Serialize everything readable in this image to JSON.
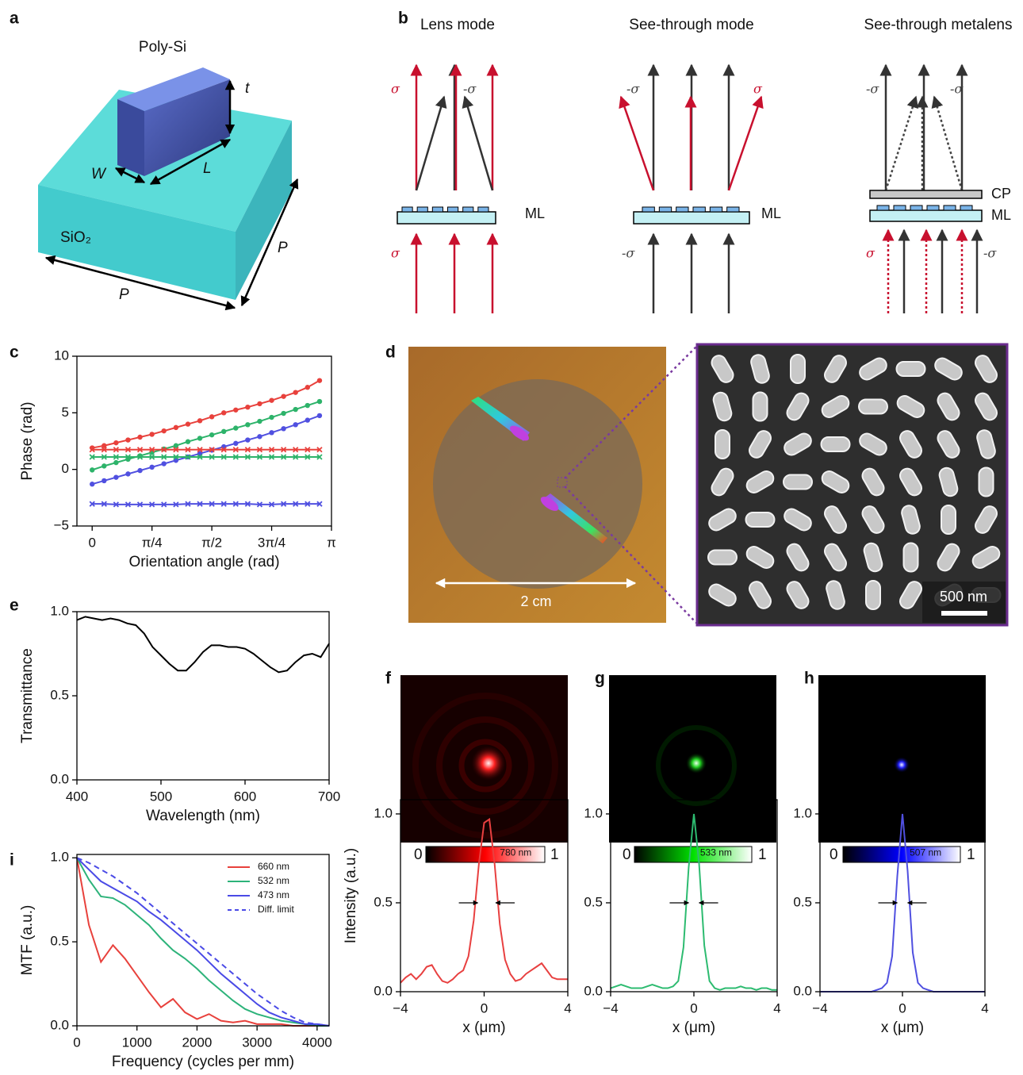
{
  "figure": {
    "panel_labels": [
      "a",
      "b",
      "c",
      "d",
      "e",
      "f",
      "g",
      "h",
      "i"
    ],
    "a": {
      "fin_material": "Poly-Si",
      "height": "t",
      "width": "W",
      "length": "L",
      "substrate": "SiO₂",
      "period_x": "P",
      "period_y": "P"
    },
    "b": {
      "diagrams": [
        {
          "title": "Lens mode",
          "labels": [
            "σ",
            "-σ",
            "ML",
            "σ"
          ]
        },
        {
          "title": "See-through mode",
          "labels": [
            "-σ",
            "σ",
            "ML",
            "-σ"
          ]
        },
        {
          "title": "See-through metalens",
          "labels": [
            "-σ",
            "-σ",
            "CP",
            "ML",
            "σ",
            "-σ"
          ]
        }
      ]
    },
    "d": {
      "photo_scale": "2 cm",
      "sem_scale": "500 nm"
    },
    "colorbars": [
      {
        "min": "0",
        "max": "1"
      },
      {
        "min": "0",
        "max": "1"
      },
      {
        "min": "0",
        "max": "1"
      }
    ]
  },
  "chart_data": [
    {
      "type": "line",
      "xlabel": "Orientation angle (rad)",
      "ylabel": "Phase (rad)",
      "x": [
        0,
        0.157,
        0.314,
        0.471,
        0.628,
        0.785,
        0.942,
        1.1,
        1.257,
        1.414,
        1.571,
        1.728,
        1.885,
        2.042,
        2.199,
        2.356,
        2.513,
        2.67,
        2.827,
        2.985
      ],
      "series": [
        {
          "color": "#e8413c",
          "marker": "o",
          "values": [
            1.9,
            2.1,
            2.35,
            2.6,
            2.85,
            3.1,
            3.4,
            3.7,
            4.0,
            4.3,
            4.65,
            5.0,
            5.25,
            5.5,
            5.8,
            6.1,
            6.45,
            6.8,
            7.25,
            7.85
          ]
        },
        {
          "color": "#2db36a",
          "marker": "o",
          "values": [
            -0.05,
            0.3,
            0.6,
            0.9,
            1.2,
            1.5,
            1.8,
            2.1,
            2.45,
            2.75,
            3.05,
            3.35,
            3.65,
            3.95,
            4.25,
            4.6,
            4.95,
            5.3,
            5.65,
            6.0
          ]
        },
        {
          "color": "#5050e0",
          "marker": "o",
          "values": [
            -1.3,
            -1.0,
            -0.7,
            -0.4,
            -0.1,
            0.2,
            0.5,
            0.8,
            1.1,
            1.4,
            1.7,
            2.0,
            2.3,
            2.6,
            2.9,
            3.25,
            3.6,
            3.95,
            4.35,
            4.75
          ]
        },
        {
          "color": "#e8413c",
          "marker": "x",
          "values": [
            1.75,
            1.75,
            1.75,
            1.75,
            1.75,
            1.75,
            1.75,
            1.75,
            1.75,
            1.75,
            1.75,
            1.75,
            1.75,
            1.75,
            1.75,
            1.75,
            1.75,
            1.75,
            1.75,
            1.75
          ]
        },
        {
          "color": "#2db36a",
          "marker": "x",
          "values": [
            1.1,
            1.1,
            1.1,
            1.1,
            1.1,
            1.1,
            1.1,
            1.1,
            1.1,
            1.1,
            1.1,
            1.1,
            1.1,
            1.1,
            1.1,
            1.1,
            1.1,
            1.1,
            1.1,
            1.1
          ]
        },
        {
          "color": "#5050e0",
          "marker": "x",
          "values": [
            -3.05,
            -3.05,
            -3.1,
            -3.1,
            -3.1,
            -3.1,
            -3.1,
            -3.1,
            -3.05,
            -3.05,
            -3.05,
            -3.05,
            -3.05,
            -3.05,
            -3.1,
            -3.1,
            -3.05,
            -3.05,
            -3.05,
            -3.05
          ]
        }
      ],
      "xlim": [
        -0.2,
        3.1416
      ],
      "ylim": [
        -5,
        10
      ],
      "xticks": [
        0,
        {
          "value": 0.7854,
          "label": "π/4"
        },
        {
          "value": 1.5708,
          "label": "π/2"
        },
        {
          "value": 2.3562,
          "label": "3π/4"
        },
        {
          "value": 3.1416,
          "label": "π"
        }
      ],
      "yticks": [
        {
          "value": -5,
          "label": "−5"
        },
        0,
        5,
        10
      ]
    },
    {
      "type": "line",
      "xlabel": "Wavelength (nm)",
      "ylabel": "Transmittance",
      "x": [
        400,
        410,
        420,
        430,
        440,
        450,
        460,
        470,
        480,
        490,
        500,
        510,
        520,
        530,
        540,
        550,
        560,
        570,
        580,
        590,
        600,
        610,
        620,
        630,
        640,
        650,
        660,
        670,
        680,
        690,
        700
      ],
      "series": [
        {
          "color": "#000000",
          "values": [
            0.95,
            0.97,
            0.96,
            0.95,
            0.96,
            0.95,
            0.93,
            0.92,
            0.87,
            0.79,
            0.74,
            0.69,
            0.65,
            0.65,
            0.7,
            0.76,
            0.8,
            0.8,
            0.79,
            0.79,
            0.78,
            0.75,
            0.71,
            0.67,
            0.64,
            0.65,
            0.7,
            0.74,
            0.75,
            0.73,
            0.81
          ]
        }
      ],
      "xlim": [
        400,
        700
      ],
      "ylim": [
        0,
        1
      ],
      "xticks": [
        400,
        500,
        600,
        700
      ],
      "yticks": [
        {
          "value": 0,
          "label": "0.0"
        },
        0.5,
        {
          "value": 1,
          "label": "1.0"
        }
      ]
    },
    {
      "type": "line",
      "xlabel": "Frequency (cycles per mm)",
      "ylabel": "MTF (a.u.)",
      "legend": "upper right",
      "x": [
        0,
        200,
        400,
        600,
        800,
        1000,
        1200,
        1400,
        1600,
        1800,
        2000,
        2200,
        2400,
        2600,
        2800,
        3000,
        3200,
        3400,
        3600,
        3800,
        4000,
        4200
      ],
      "series": [
        {
          "name": "660 nm",
          "color": "#e8413c",
          "values": [
            1.0,
            0.6,
            0.38,
            0.48,
            0.4,
            0.3,
            0.2,
            0.11,
            0.16,
            0.08,
            0.04,
            0.07,
            0.03,
            0.02,
            0.03,
            0.01,
            0.01,
            0.01,
            0,
            0,
            0,
            0
          ]
        },
        {
          "name": "532 nm",
          "color": "#2db37a",
          "values": [
            1.0,
            0.87,
            0.77,
            0.76,
            0.72,
            0.66,
            0.6,
            0.52,
            0.45,
            0.4,
            0.34,
            0.27,
            0.21,
            0.15,
            0.1,
            0.07,
            0.05,
            0.03,
            0.02,
            0.01,
            0,
            0
          ]
        },
        {
          "name": "473 nm",
          "color": "#4a4ae6",
          "values": [
            1.0,
            0.93,
            0.86,
            0.82,
            0.78,
            0.74,
            0.68,
            0.63,
            0.57,
            0.51,
            0.45,
            0.38,
            0.31,
            0.25,
            0.19,
            0.13,
            0.08,
            0.05,
            0.03,
            0.01,
            0.01,
            0
          ]
        },
        {
          "name": "Diff. limit",
          "color": "#4a4ae6",
          "linestyle": "dashed",
          "values": [
            1.0,
            0.97,
            0.93,
            0.89,
            0.84,
            0.79,
            0.73,
            0.67,
            0.61,
            0.55,
            0.49,
            0.43,
            0.37,
            0.31,
            0.25,
            0.19,
            0.14,
            0.09,
            0.05,
            0.02,
            0.01,
            0
          ]
        }
      ],
      "xlim": [
        0,
        4200
      ],
      "ylim": [
        0,
        1.02
      ],
      "xticks": [
        0,
        1000,
        2000,
        3000,
        4000
      ],
      "yticks": [
        {
          "value": 0,
          "label": "0.0"
        },
        0.5,
        {
          "value": 1,
          "label": "1.0"
        }
      ]
    },
    {
      "type": "line",
      "xlabel": "x (μm)",
      "ylabel": "Intensity (a.u.)",
      "annotation": "780 nm",
      "x": [
        -4,
        -3.75,
        -3.5,
        -3.25,
        -3,
        -2.75,
        -2.5,
        -2.25,
        -2,
        -1.75,
        -1.5,
        -1.25,
        -1,
        -0.75,
        -0.5,
        -0.25,
        0,
        0.25,
        0.5,
        0.75,
        1,
        1.25,
        1.5,
        1.75,
        2,
        2.25,
        2.5,
        2.75,
        3,
        3.25,
        3.5,
        3.75,
        4
      ],
      "series": [
        {
          "color": "#e84040",
          "values": [
            0.05,
            0.08,
            0.1,
            0.07,
            0.1,
            0.14,
            0.15,
            0.1,
            0.06,
            0.05,
            0.07,
            0.1,
            0.12,
            0.2,
            0.4,
            0.72,
            0.95,
            0.97,
            0.72,
            0.38,
            0.18,
            0.1,
            0.06,
            0.07,
            0.1,
            0.12,
            0.14,
            0.16,
            0.12,
            0.08,
            0.07,
            0.07,
            0.07
          ]
        }
      ],
      "xlim": [
        -4,
        4
      ],
      "ylim": [
        0,
        1.08
      ],
      "xticks": [
        {
          "value": -4,
          "label": "−4"
        },
        0,
        4
      ],
      "yticks": [
        {
          "value": 0,
          "label": "0.0"
        },
        0.5,
        {
          "value": 1,
          "label": "1.0"
        }
      ]
    },
    {
      "type": "line",
      "xlabel": "x (μm)",
      "annotation": "533 nm",
      "x": [
        -4,
        -3.75,
        -3.5,
        -3.25,
        -3,
        -2.75,
        -2.5,
        -2.25,
        -2,
        -1.75,
        -1.5,
        -1.25,
        -1,
        -0.75,
        -0.5,
        -0.25,
        0,
        0.25,
        0.5,
        0.75,
        1,
        1.25,
        1.5,
        1.75,
        2,
        2.25,
        2.5,
        2.75,
        3,
        3.25,
        3.5,
        3.75,
        4
      ],
      "series": [
        {
          "color": "#2dbb70",
          "values": [
            0.02,
            0.03,
            0.04,
            0.03,
            0.02,
            0.02,
            0.02,
            0.03,
            0.04,
            0.03,
            0.02,
            0.02,
            0.03,
            0.06,
            0.25,
            0.7,
            1.0,
            0.72,
            0.26,
            0.06,
            0.02,
            0.01,
            0.02,
            0.02,
            0.02,
            0.03,
            0.02,
            0.02,
            0.01,
            0.02,
            0.02,
            0.01,
            0.01
          ]
        }
      ],
      "xlim": [
        -4,
        4
      ],
      "ylim": [
        0,
        1.08
      ],
      "xticks": [
        {
          "value": -4,
          "label": "−4"
        },
        0,
        4
      ],
      "yticks": [
        {
          "value": 0,
          "label": "0.0"
        },
        0.5,
        {
          "value": 1,
          "label": "1.0"
        }
      ]
    },
    {
      "type": "line",
      "xlabel": "x (μm)",
      "annotation": "507 nm",
      "x": [
        -4,
        -3.75,
        -3.5,
        -3.25,
        -3,
        -2.75,
        -2.5,
        -2.25,
        -2,
        -1.75,
        -1.5,
        -1.25,
        -1,
        -0.75,
        -0.5,
        -0.25,
        0,
        0.25,
        0.5,
        0.75,
        1,
        1.25,
        1.5,
        1.75,
        2,
        2.25,
        2.5,
        2.75,
        3,
        3.25,
        3.5,
        3.75,
        4
      ],
      "series": [
        {
          "color": "#5050e0",
          "values": [
            0,
            0,
            0,
            0,
            0,
            0,
            0,
            0,
            0,
            0,
            0,
            0.01,
            0.02,
            0.05,
            0.2,
            0.65,
            1.0,
            0.68,
            0.22,
            0.05,
            0.02,
            0.01,
            0,
            0,
            0,
            0,
            0,
            0,
            0,
            0,
            0,
            0,
            0
          ]
        }
      ],
      "xlim": [
        -4,
        4
      ],
      "ylim": [
        0,
        1.08
      ],
      "xticks": [
        {
          "value": -4,
          "label": "−4"
        },
        0,
        4
      ],
      "yticks": [
        {
          "value": 0,
          "label": "0.0"
        },
        0.5,
        {
          "value": 1,
          "label": "1.0"
        }
      ]
    }
  ]
}
